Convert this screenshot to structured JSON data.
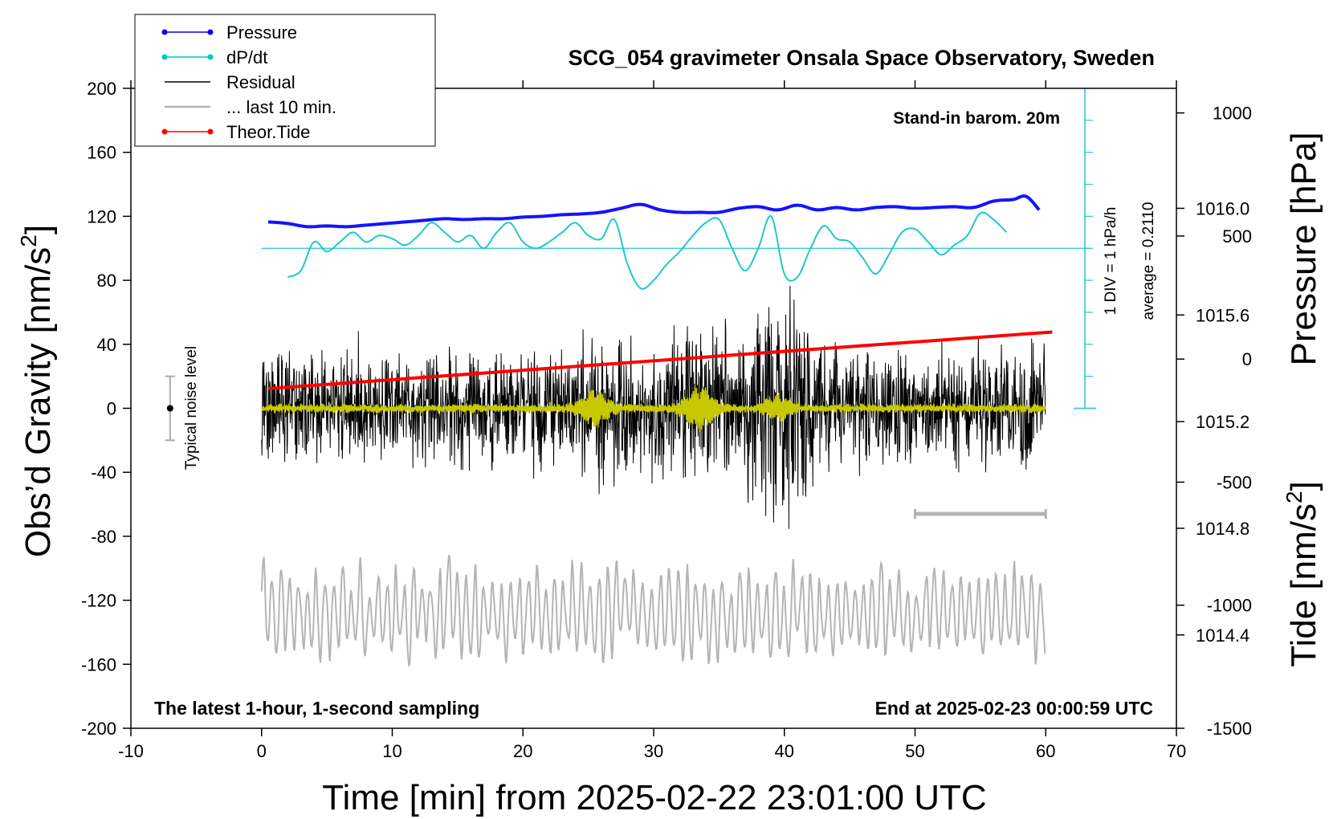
{
  "chart_data": {
    "type": "line",
    "title": "SCG_054 gravimeter Onsala Space Observatory, Sweden",
    "subtitle_left": "The latest 1-hour, 1-second sampling",
    "subtitle_right": "End at 2025-02-23 00:00:59 UTC",
    "barometer_note": "Stand-in barom. 20m",
    "xlabel": "Time [min] from 2025-02-22 23:01:00 UTC",
    "ylabel_left": "Obs’d Gravity [nm/s",
    "ylabel_left_sup": "2",
    "ylabel_left_end": "]",
    "ylabel_pressure": "Pressure [hPa]",
    "ylabel_tide": "Tide [nm/s",
    "ylabel_tide_sup": "2",
    "ylabel_tide_end": "]",
    "xlim": [
      -10,
      70
    ],
    "ylim": [
      -200,
      200
    ],
    "x_ticks": [
      "-10",
      "0",
      "10",
      "20",
      "30",
      "40",
      "50",
      "60",
      "70"
    ],
    "y_ticks": [
      "-200",
      "-160",
      "-120",
      "-80",
      "-40",
      "0",
      "40",
      "80",
      "120",
      "160",
      "200"
    ],
    "pressure_ticks": [
      "1014.4",
      "1014.8",
      "1015.2",
      "1015.6",
      "1016.0"
    ],
    "pressure_tick_values": [
      1014.4,
      1014.8,
      1015.2,
      1015.6,
      1016.0
    ],
    "tide_ticks": [
      "-1500",
      "-1000",
      "-500",
      "0",
      "500",
      "1000"
    ],
    "tide_tick_values": [
      -1500,
      -1000,
      -500,
      0,
      500,
      1000
    ],
    "pressure_range": [
      1014.05,
      1016.45
    ],
    "tide_range": [
      -1500,
      1100
    ],
    "dpdt_scale_label": "1 DIV = 1 hPa/h",
    "dpdt_average_label": "average = 0.2110",
    "noise_label": "Typical noise level",
    "noise_range": [
      -20,
      20
    ],
    "legend": [
      {
        "label": "Pressure",
        "color": "#0000ff",
        "marker": true
      },
      {
        "label": "dP/dt",
        "color": "#00c8c8",
        "marker": true
      },
      {
        "label": "Residual",
        "color": "#000000",
        "marker": false
      },
      {
        "label": "... last 10 min.",
        "color": "#b4b4b4",
        "marker": false
      },
      {
        "label": "Theor.Tide",
        "color": "#ff0000",
        "marker": true
      }
    ],
    "series": [
      {
        "name": "Pressure",
        "color": "#1414ff",
        "unit": "gravity-axis position",
        "x": [
          0.5,
          2,
          3.5,
          5,
          6.5,
          8,
          9.5,
          11,
          12.5,
          14,
          15.5,
          17,
          18.5,
          20,
          21.5,
          23,
          24.5,
          26,
          27.5,
          29,
          30.5,
          32,
          33.5,
          35,
          36.5,
          38,
          39.5,
          41,
          42.5,
          44,
          45.5,
          47,
          48.5,
          50,
          51.5,
          53,
          54.5,
          56,
          57.5,
          58.5,
          59.5
        ],
        "values": [
          116.5,
          115.5,
          113.5,
          114,
          113.5,
          114.5,
          115.5,
          116.5,
          117.5,
          118.5,
          118,
          118.5,
          118.5,
          119.5,
          120,
          121,
          121.5,
          122.5,
          125,
          127.5,
          124,
          122.5,
          122.5,
          122.5,
          125,
          126,
          124,
          127,
          124,
          125.5,
          124,
          125.5,
          126,
          125,
          125.5,
          126,
          125.5,
          129.5,
          130.5,
          132.5,
          124
        ]
      },
      {
        "name": "dP/dt",
        "color": "#20c8c8",
        "unit": "gravity-axis position",
        "baseline": 100,
        "x": [
          2,
          3,
          4,
          5,
          6,
          7,
          8,
          9,
          10,
          11,
          12,
          13,
          14,
          15,
          16,
          17,
          18,
          19,
          20,
          21,
          22,
          23,
          24,
          25,
          26,
          27,
          28,
          29,
          30,
          31,
          32,
          33,
          34,
          35,
          36,
          37,
          38,
          39,
          40,
          41,
          42,
          43,
          44,
          45,
          46,
          47,
          48,
          49,
          50,
          51,
          52,
          53,
          54,
          55,
          56,
          57
        ],
        "values": [
          82,
          86,
          104,
          98,
          104,
          110,
          104,
          108,
          106,
          102,
          108,
          116,
          110,
          104,
          108,
          100,
          110,
          116,
          104,
          100,
          104,
          110,
          116,
          108,
          106,
          118,
          90,
          75,
          80,
          90,
          98,
          108,
          116,
          118,
          100,
          86,
          100,
          120,
          84,
          82,
          100,
          114,
          106,
          104,
          94,
          84,
          96,
          110,
          112,
          104,
          96,
          102,
          108,
          122,
          118,
          110
        ]
      },
      {
        "name": "Theor.Tide",
        "color": "#ff0000",
        "unit": "nm/s^2",
        "x": [
          0.5,
          60.5
        ],
        "values": [
          -120,
          110
        ]
      }
    ],
    "residual": {
      "name": "Residual",
      "color": "#000000",
      "x_range": [
        0,
        60
      ],
      "typical_amplitude": 25,
      "peak_time_min": 40,
      "peak_values": [
        92,
        -90
      ]
    },
    "residual_filtered": {
      "name": "Residual (filtered)",
      "color": "#c8c800",
      "x_range": [
        0,
        60
      ],
      "bursts_at_min": [
        25.5,
        33.5,
        39.5
      ]
    },
    "last_10_min": {
      "name": "... last 10 min.",
      "color": "#b4b4b4",
      "marker_x_range": [
        50,
        60
      ],
      "marker_y": -66,
      "trace_x_range": [
        0,
        60
      ],
      "trace_center_y": -128
    },
    "noise_level_x": -7
  }
}
